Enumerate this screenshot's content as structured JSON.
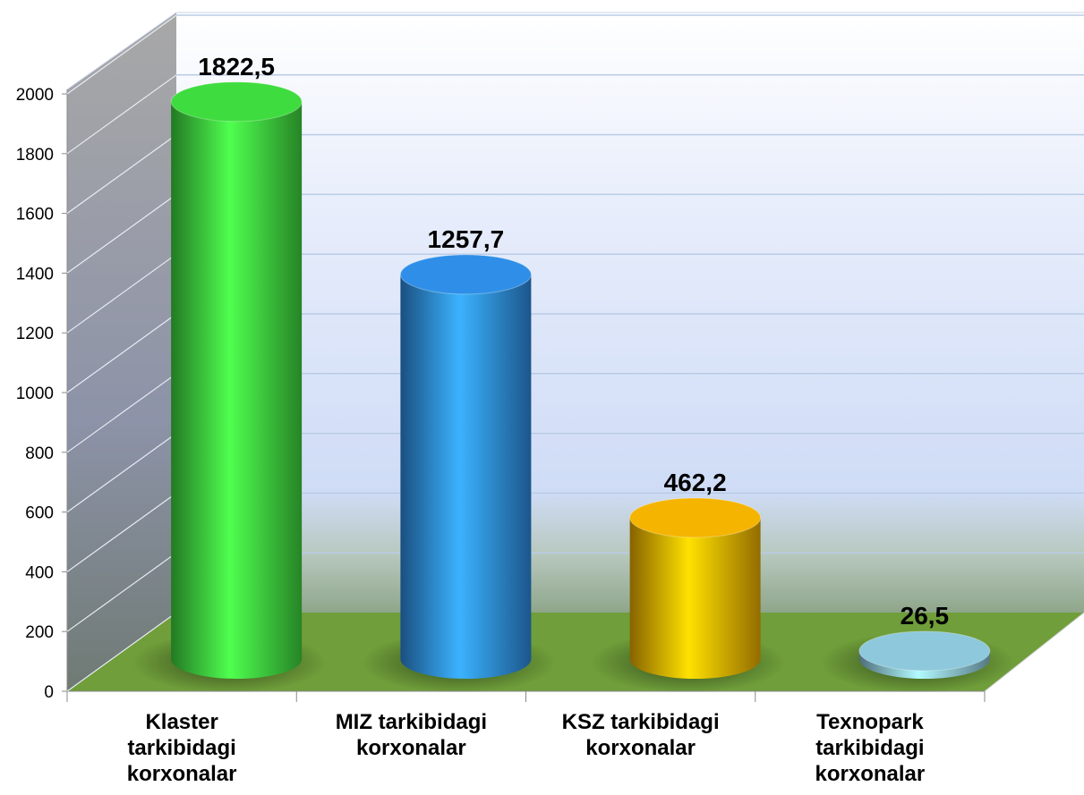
{
  "chart_data": {
    "type": "bar3d",
    "categories": [
      "Klaster tarkibidagi korxonalar",
      "MIZ tarkibidagi korxonalar",
      "KSZ tarkibidagi korxonalar",
      "Texnopark tarkibidagi korxonalar"
    ],
    "values": [
      1822.5,
      1257.7,
      462.2,
      26.5
    ],
    "value_labels": [
      "1822,5",
      "1257,7",
      "462,2",
      "26,5"
    ],
    "colors": [
      "#3fdc3f",
      "#2f8fe8",
      "#f5b400",
      "#8ec8dc"
    ],
    "ylim": [
      0,
      2000
    ],
    "yticks": [
      0,
      200,
      400,
      600,
      800,
      1000,
      1200,
      1400,
      1600,
      1800,
      2000
    ],
    "grid": true
  }
}
